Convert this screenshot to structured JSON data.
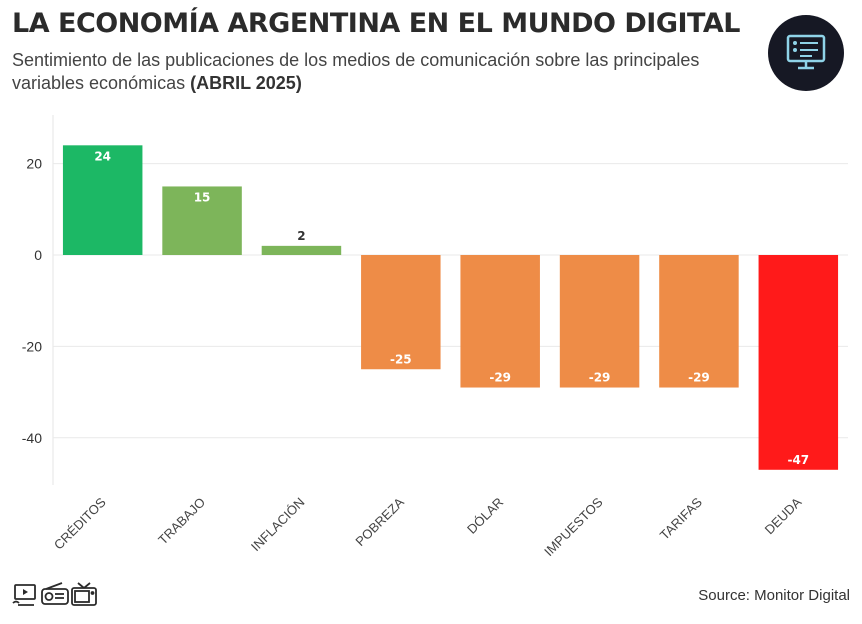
{
  "header": {
    "title": "LA ECONOMÍA ARGENTINA EN EL MUNDO DIGITAL",
    "subtitle": "Sentimiento de las publicaciones de los medios de comunicación sobre las principales variables económicas",
    "subtitle_emphasis": "(ABRIL 2025)"
  },
  "logo": {
    "icon": "monitor-dashboard-icon",
    "background": "#161824",
    "accent": "#8fd3e8"
  },
  "footer": {
    "source": "Source: Monitor Digital",
    "media_icons": [
      "tv-broadcast-icon",
      "radio-icon",
      "television-icon"
    ]
  },
  "chart_data": {
    "type": "bar",
    "title": "",
    "xlabel": "",
    "ylabel": "",
    "categories": [
      "CRÉDITOS",
      "TRABAJO",
      "INFLACIÓN",
      "POBREZA",
      "DÓLAR",
      "IMPUESTOS",
      "TARIFAS",
      "DEUDA"
    ],
    "values": [
      24,
      15,
      2,
      -25,
      -29,
      -29,
      -29,
      -47
    ],
    "colors": [
      "#1cb865",
      "#7db55a",
      "#7db55a",
      "#ee8c47",
      "#ee8c47",
      "#ee8c47",
      "#ee8c47",
      "#ff1a1a"
    ],
    "ylim": [
      -50,
      30
    ],
    "yticks": [
      20,
      0,
      -20,
      -40
    ],
    "grid": true,
    "legend": "none"
  }
}
